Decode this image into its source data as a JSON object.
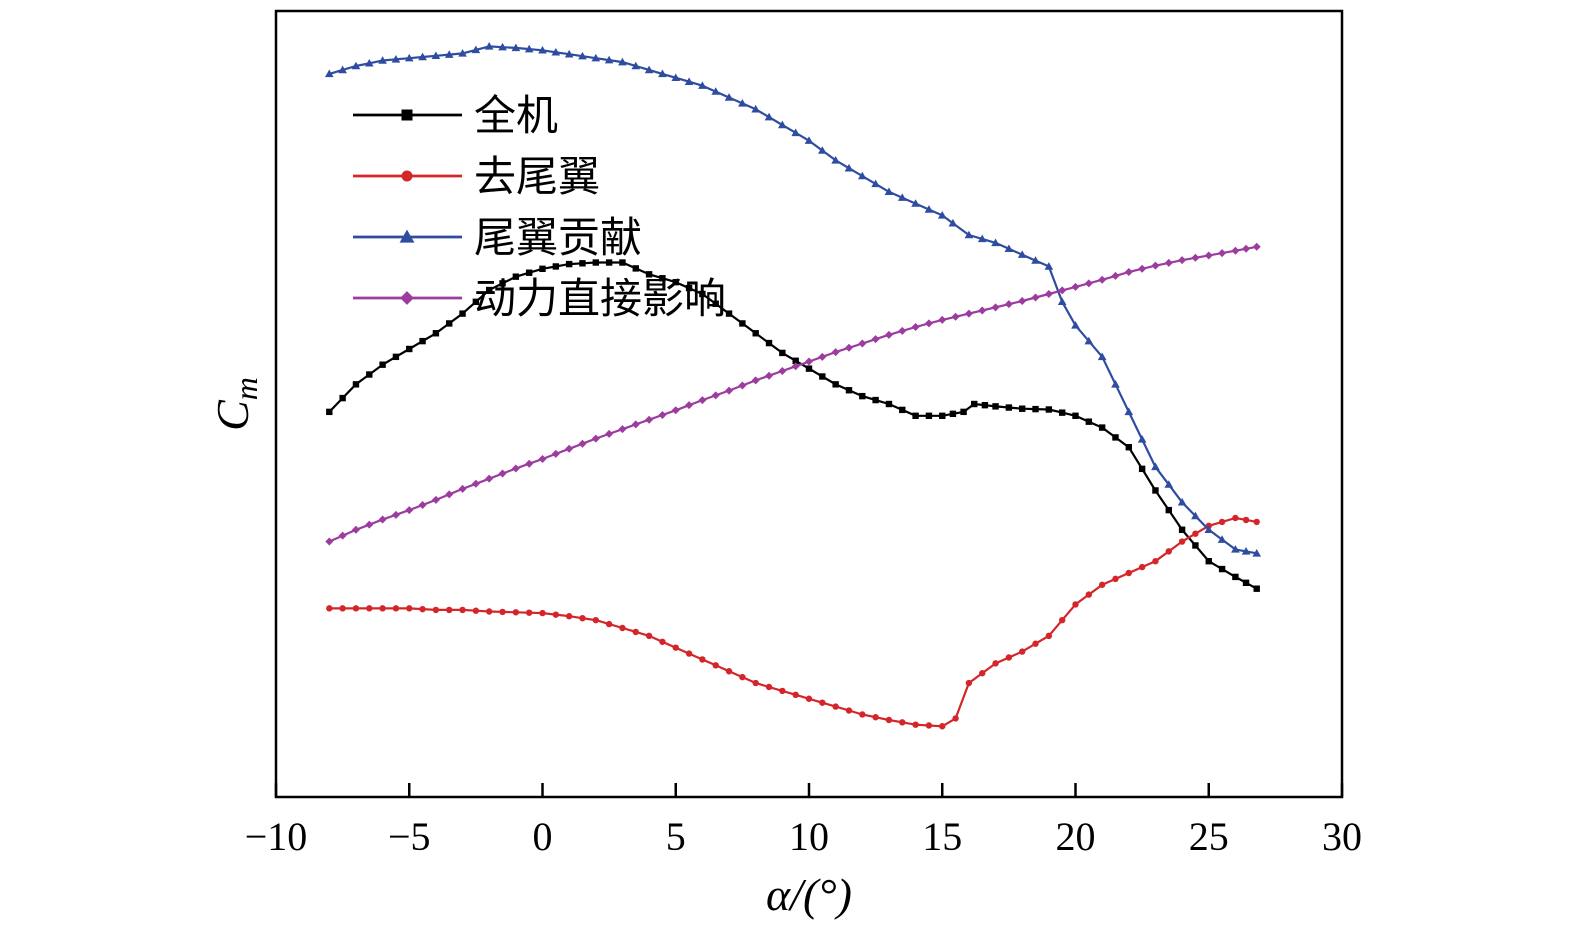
{
  "chart_data": {
    "type": "line",
    "title": "",
    "xlabel": "α/(°)",
    "ylabel": "C_m",
    "ylabel_main": "C",
    "ylabel_sub": "m",
    "xlim": [
      -10,
      30
    ],
    "ylim": [
      0,
      100
    ],
    "y_ticks_shown": false,
    "grid": false,
    "legend_position": "top-left",
    "x_ticks": [
      -10,
      -5,
      0,
      5,
      10,
      15,
      20,
      25,
      30
    ],
    "x_tick_labels": [
      "−10",
      "−5",
      "0",
      "5",
      "10",
      "15",
      "20",
      "25",
      "30"
    ],
    "series": [
      {
        "name": "全机",
        "color": "#000000",
        "marker": "square",
        "x": [
          -8,
          -7,
          -6,
          -5,
          -4,
          -3,
          -2,
          -1,
          0,
          1,
          2,
          3,
          4,
          5,
          6,
          7,
          8,
          9,
          10,
          11,
          12,
          13,
          14,
          15,
          15.8,
          16.2,
          17,
          18,
          19,
          20,
          21,
          22,
          23,
          24,
          25,
          26,
          26.8
        ],
        "y": [
          49.0,
          52.5,
          55.0,
          57.0,
          59.0,
          61.5,
          64.5,
          66.2,
          67.2,
          67.8,
          68.0,
          68.0,
          66.5,
          65.5,
          64.0,
          61.5,
          59.0,
          56.5,
          54.5,
          52.5,
          51.0,
          50.0,
          48.5,
          48.5,
          49.0,
          50.0,
          49.7,
          49.4,
          49.3,
          48.5,
          47.0,
          44.5,
          39.0,
          34.0,
          30.0,
          28.0,
          26.5
        ]
      },
      {
        "name": "去尾翼",
        "color": "#d4262a",
        "marker": "circle",
        "x": [
          -8,
          -7,
          -6,
          -5,
          -4,
          -3,
          -2,
          -1,
          0,
          1,
          2,
          3,
          4,
          5,
          6,
          7,
          8,
          9,
          10,
          11,
          12,
          13,
          14,
          15,
          15.5,
          16,
          17,
          18,
          19,
          20,
          21,
          22,
          23,
          24,
          25,
          26,
          26.8
        ],
        "y": [
          24.0,
          24.0,
          24.0,
          24.0,
          23.8,
          23.8,
          23.6,
          23.5,
          23.4,
          23.0,
          22.5,
          21.5,
          20.5,
          19.0,
          17.5,
          16.0,
          14.5,
          13.5,
          12.5,
          11.5,
          10.5,
          9.8,
          9.2,
          9.0,
          10.0,
          14.5,
          17.0,
          18.5,
          20.5,
          24.5,
          27.0,
          28.5,
          30.0,
          32.5,
          34.5,
          35.5,
          35.0
        ]
      },
      {
        "name": "尾翼贡献",
        "color": "#2f4da0",
        "marker": "triangle",
        "x": [
          -8,
          -7,
          -6,
          -5,
          -4,
          -3,
          -2,
          -1,
          0,
          1,
          2,
          3,
          4,
          5,
          6,
          7,
          8,
          9,
          10,
          11,
          12,
          13,
          14,
          15,
          15.4,
          16,
          17,
          18,
          19,
          19.5,
          20,
          21,
          22,
          23,
          24,
          25,
          26,
          26.8
        ],
        "y": [
          92.0,
          93.0,
          93.7,
          94.0,
          94.3,
          94.6,
          95.5,
          95.3,
          95.0,
          94.5,
          94.0,
          93.5,
          92.5,
          91.5,
          90.5,
          89.0,
          87.5,
          85.5,
          83.5,
          81.0,
          79.0,
          77.0,
          75.5,
          74.0,
          73.0,
          71.5,
          70.5,
          69.0,
          67.5,
          63.0,
          60.0,
          56.0,
          49.0,
          42.0,
          37.5,
          34.0,
          31.5,
          31.0
        ]
      },
      {
        "name": "动力直接影响",
        "color": "#9b3c9e",
        "marker": "diamond",
        "x": [
          -8,
          -7,
          -6,
          -5,
          -4,
          -3,
          -2,
          -1,
          0,
          1,
          2,
          3,
          4,
          5,
          6,
          7,
          8,
          9,
          10,
          11,
          12,
          13,
          14,
          15,
          16,
          17,
          18,
          19,
          20,
          21,
          22,
          23,
          24,
          25,
          26,
          26.8
        ],
        "y": [
          32.5,
          34.0,
          35.3,
          36.5,
          37.8,
          39.2,
          40.5,
          41.8,
          43.0,
          44.3,
          45.6,
          46.8,
          48.0,
          49.2,
          50.5,
          51.7,
          53.0,
          54.2,
          55.4,
          56.6,
          57.7,
          58.8,
          59.8,
          60.7,
          61.5,
          62.3,
          63.1,
          64.0,
          64.9,
          65.8,
          66.8,
          67.6,
          68.3,
          68.9,
          69.5,
          70.0
        ]
      }
    ]
  }
}
